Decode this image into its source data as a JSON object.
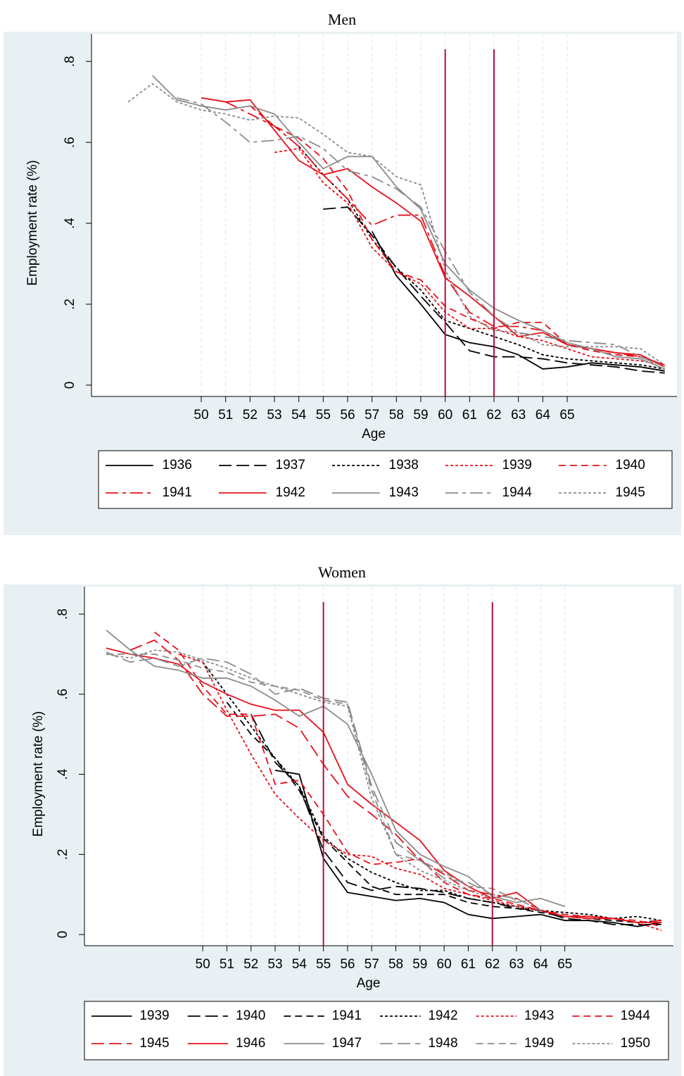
{
  "chart_data": [
    {
      "type": "line",
      "title": "Men",
      "xlabel": "Age",
      "ylabel": "Employment rate (%)",
      "x": [
        47,
        48,
        49,
        50,
        51,
        52,
        53,
        54,
        55,
        56,
        57,
        58,
        59,
        60,
        61,
        62,
        63,
        64,
        65,
        66,
        67,
        68,
        69
      ],
      "xlim": [
        45.5,
        69.5
      ],
      "xticks": [
        50,
        51,
        52,
        53,
        54,
        55,
        56,
        57,
        58,
        59,
        60,
        61,
        62,
        63,
        64,
        65
      ],
      "ylim": [
        -0.028,
        0.83
      ],
      "yticks": [
        0,
        {
          "value": 0.2,
          "label": ".2"
        },
        {
          "value": 0.4,
          "label": ".4"
        },
        {
          "value": 0.6,
          "label": ".6"
        },
        {
          "value": 0.8,
          "label": ".8"
        }
      ],
      "grid": true,
      "vlines": [
        60,
        62
      ],
      "vline_color": "#b0103a",
      "series": [
        {
          "name": "1936",
          "color": "#000000",
          "style": "solid",
          "values": [
            null,
            null,
            null,
            null,
            null,
            null,
            null,
            null,
            null,
            null,
            0.38,
            0.27,
            0.2,
            0.125,
            0.105,
            0.095,
            0.075,
            0.04,
            0.045,
            0.055,
            0.05,
            0.045,
            0.035
          ]
        },
        {
          "name": "1937",
          "color": "#000000",
          "style": "longdash",
          "values": [
            null,
            null,
            null,
            null,
            null,
            null,
            null,
            null,
            0.435,
            0.44,
            0.37,
            0.29,
            0.22,
            0.155,
            0.085,
            0.07,
            0.07,
            0.065,
            0.055,
            0.05,
            0.045,
            0.035,
            0.03
          ]
        },
        {
          "name": "1938",
          "color": "#000000",
          "style": "shortdash",
          "values": [
            null,
            null,
            null,
            null,
            null,
            null,
            null,
            0.59,
            0.52,
            0.46,
            0.36,
            0.29,
            0.235,
            0.16,
            0.14,
            0.12,
            0.1,
            0.075,
            0.065,
            0.06,
            0.055,
            0.05,
            0.04
          ]
        },
        {
          "name": "1939",
          "color": "#e8101a",
          "style": "shortdash",
          "values": [
            null,
            null,
            null,
            null,
            null,
            null,
            0.575,
            0.585,
            0.5,
            0.45,
            0.34,
            0.28,
            0.25,
            0.18,
            0.14,
            0.14,
            0.12,
            0.11,
            0.09,
            0.07,
            0.065,
            0.06,
            0.05
          ]
        },
        {
          "name": "1940",
          "color": "#e8101a",
          "style": "dash",
          "values": [
            null,
            null,
            null,
            null,
            null,
            0.69,
            0.64,
            0.61,
            0.56,
            0.48,
            0.36,
            0.28,
            0.26,
            0.195,
            0.165,
            0.14,
            0.155,
            0.155,
            0.1,
            0.085,
            0.075,
            0.07,
            0.05
          ]
        },
        {
          "name": "1941",
          "color": "#e8101a",
          "style": "dashdot",
          "values": [
            null,
            null,
            null,
            null,
            0.7,
            0.67,
            0.64,
            0.59,
            0.52,
            0.46,
            0.395,
            0.42,
            0.42,
            0.27,
            0.18,
            0.145,
            0.145,
            0.135,
            0.1,
            0.09,
            0.08,
            0.07,
            0.05
          ]
        },
        {
          "name": "1942",
          "color": "#e8101a",
          "style": "solid",
          "values": [
            null,
            null,
            null,
            0.71,
            0.7,
            0.705,
            0.63,
            0.555,
            0.52,
            0.535,
            0.49,
            0.45,
            0.405,
            0.265,
            0.22,
            0.17,
            0.12,
            0.13,
            0.1,
            0.09,
            0.08,
            0.075,
            0.045
          ]
        },
        {
          "name": "1943",
          "color": "#8c8c8c",
          "style": "solid",
          "values": [
            null,
            0.765,
            0.705,
            0.69,
            0.68,
            0.69,
            0.67,
            0.6,
            0.535,
            0.565,
            0.565,
            0.49,
            0.435,
            0.3,
            0.235,
            0.19,
            0.16,
            0.135,
            0.105,
            0.09,
            0.07,
            0.065,
            0.04
          ]
        },
        {
          "name": "1944",
          "color": "#8c8c8c",
          "style": "dashdot",
          "values": [
            null,
            null,
            0.71,
            0.695,
            0.65,
            0.6,
            0.605,
            0.615,
            0.585,
            0.53,
            0.515,
            0.485,
            0.44,
            0.33,
            0.23,
            0.17,
            0.13,
            0.12,
            0.11,
            0.105,
            0.1,
            0.07,
            0.045
          ]
        },
        {
          "name": "1945",
          "color": "#8c8c8c",
          "style": "shortdash",
          "values": [
            0.7,
            0.745,
            0.7,
            0.68,
            0.67,
            0.655,
            0.665,
            0.66,
            0.62,
            0.575,
            0.565,
            0.515,
            0.495,
            0.285,
            0.17,
            0.135,
            0.13,
            0.1,
            0.095,
            0.095,
            0.095,
            0.09,
            0.05
          ]
        }
      ]
    },
    {
      "type": "line",
      "title": "Women",
      "xlabel": "Age",
      "ylabel": "Employment rate (%)",
      "x": [
        46,
        47,
        48,
        49,
        50,
        51,
        52,
        53,
        54,
        55,
        56,
        57,
        58,
        59,
        60,
        61,
        62,
        63,
        64,
        65,
        66,
        67,
        68,
        69
      ],
      "xlim": [
        45.1,
        69.5
      ],
      "xticks": [
        50,
        51,
        52,
        53,
        54,
        55,
        56,
        57,
        58,
        59,
        60,
        61,
        62,
        63,
        64,
        65
      ],
      "ylim": [
        -0.028,
        0.83
      ],
      "yticks": [
        0,
        {
          "value": 0.2,
          "label": ".2"
        },
        {
          "value": 0.4,
          "label": ".4"
        },
        {
          "value": 0.6,
          "label": ".6"
        },
        {
          "value": 0.8,
          "label": ".8"
        }
      ],
      "grid": true,
      "vlines": [
        55,
        62
      ],
      "vline_color": "#b0103a",
      "series": [
        {
          "name": "1939",
          "color": "#000000",
          "style": "solid",
          "values": [
            null,
            null,
            null,
            null,
            null,
            null,
            null,
            0.41,
            0.4,
            0.19,
            0.105,
            0.095,
            0.085,
            0.09,
            0.08,
            0.05,
            0.04,
            0.045,
            0.05,
            0.035,
            0.035,
            0.03,
            0.02,
            0.03
          ]
        },
        {
          "name": "1940",
          "color": "#000000",
          "style": "longdash",
          "values": [
            null,
            null,
            null,
            null,
            null,
            null,
            0.55,
            0.43,
            0.37,
            0.21,
            0.13,
            0.11,
            0.12,
            0.115,
            0.105,
            0.09,
            0.08,
            0.065,
            0.06,
            0.04,
            0.035,
            0.025,
            0.025,
            0.025
          ]
        },
        {
          "name": "1941",
          "color": "#000000",
          "style": "dash",
          "values": [
            null,
            null,
            null,
            null,
            null,
            0.58,
            0.5,
            0.44,
            0.36,
            0.24,
            0.18,
            0.12,
            0.1,
            0.1,
            0.1,
            0.08,
            0.07,
            0.065,
            0.055,
            0.045,
            0.04,
            0.035,
            0.03,
            0.035
          ]
        },
        {
          "name": "1942",
          "color": "#000000",
          "style": "shortdash",
          "values": [
            null,
            null,
            null,
            null,
            0.68,
            0.6,
            0.52,
            0.44,
            0.37,
            0.245,
            0.19,
            0.155,
            0.13,
            0.11,
            0.11,
            0.09,
            0.08,
            0.07,
            0.06,
            0.055,
            0.05,
            0.04,
            0.045,
            0.035
          ]
        },
        {
          "name": "1943",
          "color": "#e8101a",
          "style": "shortdash",
          "values": [
            null,
            null,
            null,
            0.7,
            0.68,
            0.56,
            0.45,
            0.35,
            0.29,
            0.235,
            0.2,
            0.195,
            0.165,
            0.15,
            0.115,
            0.1,
            0.085,
            0.07,
            0.06,
            0.045,
            0.04,
            0.04,
            0.03,
            0.01
          ]
        },
        {
          "name": "1944",
          "color": "#e8101a",
          "style": "dash",
          "values": [
            null,
            null,
            0.755,
            0.71,
            0.62,
            0.55,
            0.55,
            0.375,
            0.385,
            0.3,
            0.205,
            0.175,
            0.18,
            0.19,
            0.13,
            0.1,
            0.09,
            0.075,
            0.06,
            0.05,
            0.045,
            0.04,
            0.035,
            0.02
          ]
        },
        {
          "name": "1945",
          "color": "#e8101a",
          "style": "longdash",
          "values": [
            null,
            0.71,
            0.735,
            0.685,
            0.6,
            0.545,
            0.545,
            0.55,
            0.515,
            0.425,
            0.345,
            0.3,
            0.25,
            0.185,
            0.15,
            0.11,
            0.1,
            0.09,
            0.06,
            0.045,
            0.04,
            0.04,
            0.03,
            0.035
          ]
        },
        {
          "name": "1946",
          "color": "#e8101a",
          "style": "solid",
          "values": [
            0.715,
            0.7,
            0.69,
            0.675,
            0.63,
            0.6,
            0.575,
            0.56,
            0.56,
            0.505,
            0.375,
            0.325,
            0.28,
            0.235,
            0.16,
            0.12,
            0.09,
            0.105,
            0.06,
            0.045,
            0.045,
            0.04,
            0.03,
            0.03
          ]
        },
        {
          "name": "1947",
          "color": "#8c8c8c",
          "style": "solid",
          "values": [
            0.76,
            0.71,
            0.67,
            0.66,
            0.64,
            0.64,
            0.62,
            0.585,
            0.545,
            0.57,
            0.525,
            0.4,
            0.26,
            0.2,
            0.17,
            0.145,
            0.095,
            0.08,
            0.09,
            0.07,
            null,
            null,
            null,
            null
          ]
        },
        {
          "name": "1948",
          "color": "#8c8c8c",
          "style": "longdash",
          "values": [
            0.705,
            0.68,
            0.69,
            0.67,
            0.69,
            0.68,
            0.65,
            0.6,
            0.615,
            0.59,
            0.58,
            0.37,
            0.23,
            0.185,
            0.14,
            0.13,
            0.1,
            0.09,
            0.06,
            null,
            null,
            null,
            null,
            null
          ]
        },
        {
          "name": "1949",
          "color": "#8c8c8c",
          "style": "dash",
          "values": [
            0.7,
            0.7,
            0.7,
            0.685,
            0.665,
            0.655,
            0.63,
            0.62,
            0.61,
            0.585,
            0.575,
            0.36,
            0.2,
            0.185,
            0.155,
            0.12,
            0.115,
            0.085,
            null,
            null,
            null,
            null,
            null,
            null
          ]
        },
        {
          "name": "1950",
          "color": "#8c8c8c",
          "style": "shortdash",
          "values": [
            0.7,
            0.69,
            0.71,
            0.705,
            0.685,
            0.665,
            0.64,
            0.62,
            0.6,
            0.58,
            0.57,
            0.34,
            0.2,
            0.16,
            0.135,
            0.11,
            0.09,
            null,
            null,
            null,
            null,
            null,
            null,
            null
          ]
        }
      ]
    }
  ]
}
